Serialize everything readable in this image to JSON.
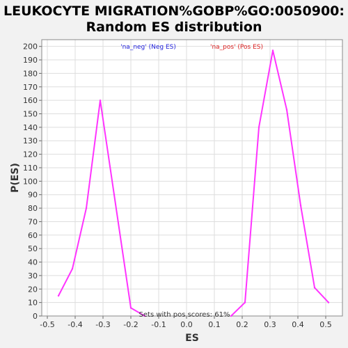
{
  "title_line1": "LEUKOCYTE MIGRATION%GOBP%GO:0050900:",
  "title_line2": "Random ES distribution",
  "chart_data": {
    "type": "line",
    "xlabel": "ES",
    "ylabel": "P(ES)",
    "xlim": [
      -0.52,
      0.56
    ],
    "ylim": [
      0,
      205
    ],
    "xticks": [
      "-0.5",
      "-0.4",
      "-0.3",
      "-0.2",
      "-0.1",
      "0.0",
      "0.1",
      "0.2",
      "0.3",
      "0.4",
      "0.5"
    ],
    "yticks": [
      "0",
      "10",
      "20",
      "30",
      "40",
      "50",
      "60",
      "70",
      "80",
      "90",
      "100",
      "110",
      "120",
      "130",
      "140",
      "150",
      "160",
      "170",
      "180",
      "190",
      "200"
    ],
    "grid": true,
    "legend": [
      {
        "label": "'na_neg' (Neg ES)",
        "color": "#2222dd"
      },
      {
        "label": "'na_pos' (Pos ES)",
        "color": "#dd2222"
      }
    ],
    "annotation": "Sets with pos scores: 61%",
    "line_color": "#ff33ff",
    "series": [
      {
        "x": [
          -0.46,
          -0.41,
          -0.36,
          -0.31,
          -0.26,
          -0.2,
          -0.15
        ],
        "values": [
          15,
          35,
          80,
          160,
          90,
          6,
          0
        ]
      },
      {
        "x": [
          0.16,
          0.21,
          0.26,
          0.31,
          0.36,
          0.41,
          0.46,
          0.51
        ],
        "values": [
          0,
          10,
          140,
          197,
          153,
          82,
          21,
          10
        ]
      }
    ]
  }
}
